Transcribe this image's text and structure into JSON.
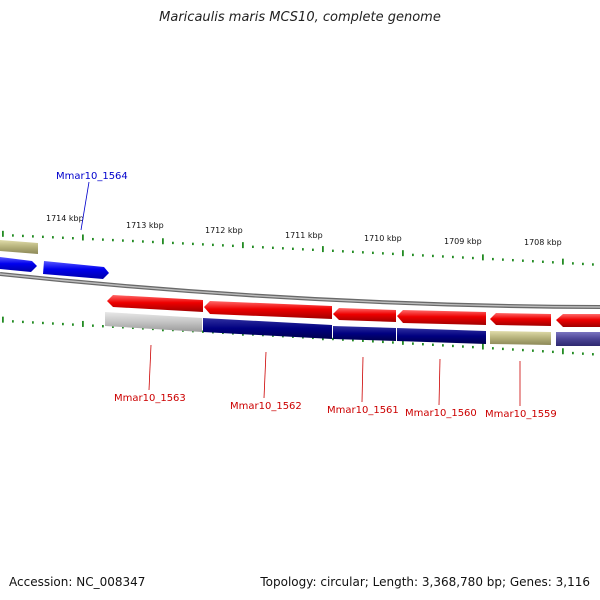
{
  "title": "Maricaulis maris MCS10, complete genome",
  "footer": {
    "accession": "Accession: NC_008347",
    "stats": "Topology: circular; Length: 3,368,780 bp; Genes: 3,116"
  },
  "ruler": {
    "ticks": [
      "1714 kbp",
      "1713 kbp",
      "1712 kbp",
      "1711 kbp",
      "1710 kbp",
      "1709 kbp",
      "1708 kbp"
    ]
  },
  "genes": [
    {
      "label": "Mmar10_1564",
      "strand": "forward",
      "color": "#0000cc"
    },
    {
      "label": "Mmar10_1563",
      "strand": "reverse",
      "color": "#cc0000"
    },
    {
      "label": "Mmar10_1562",
      "strand": "reverse",
      "color": "#cc0000"
    },
    {
      "label": "Mmar10_1561",
      "strand": "reverse",
      "color": "#cc0000"
    },
    {
      "label": "Mmar10_1560",
      "strand": "reverse",
      "color": "#cc0000"
    },
    {
      "label": "Mmar10_1559",
      "strand": "reverse",
      "color": "#cc0000"
    }
  ],
  "colors": {
    "forward_cds": "#0000ee",
    "reverse_cds": "#ee0000",
    "backbone": "#888888",
    "tick": "#228b22",
    "cog_navy": "#000080",
    "cog_olive": "#b5b17a",
    "cog_grey": "#bdbdbd",
    "cog_slate": "#4b4494"
  }
}
